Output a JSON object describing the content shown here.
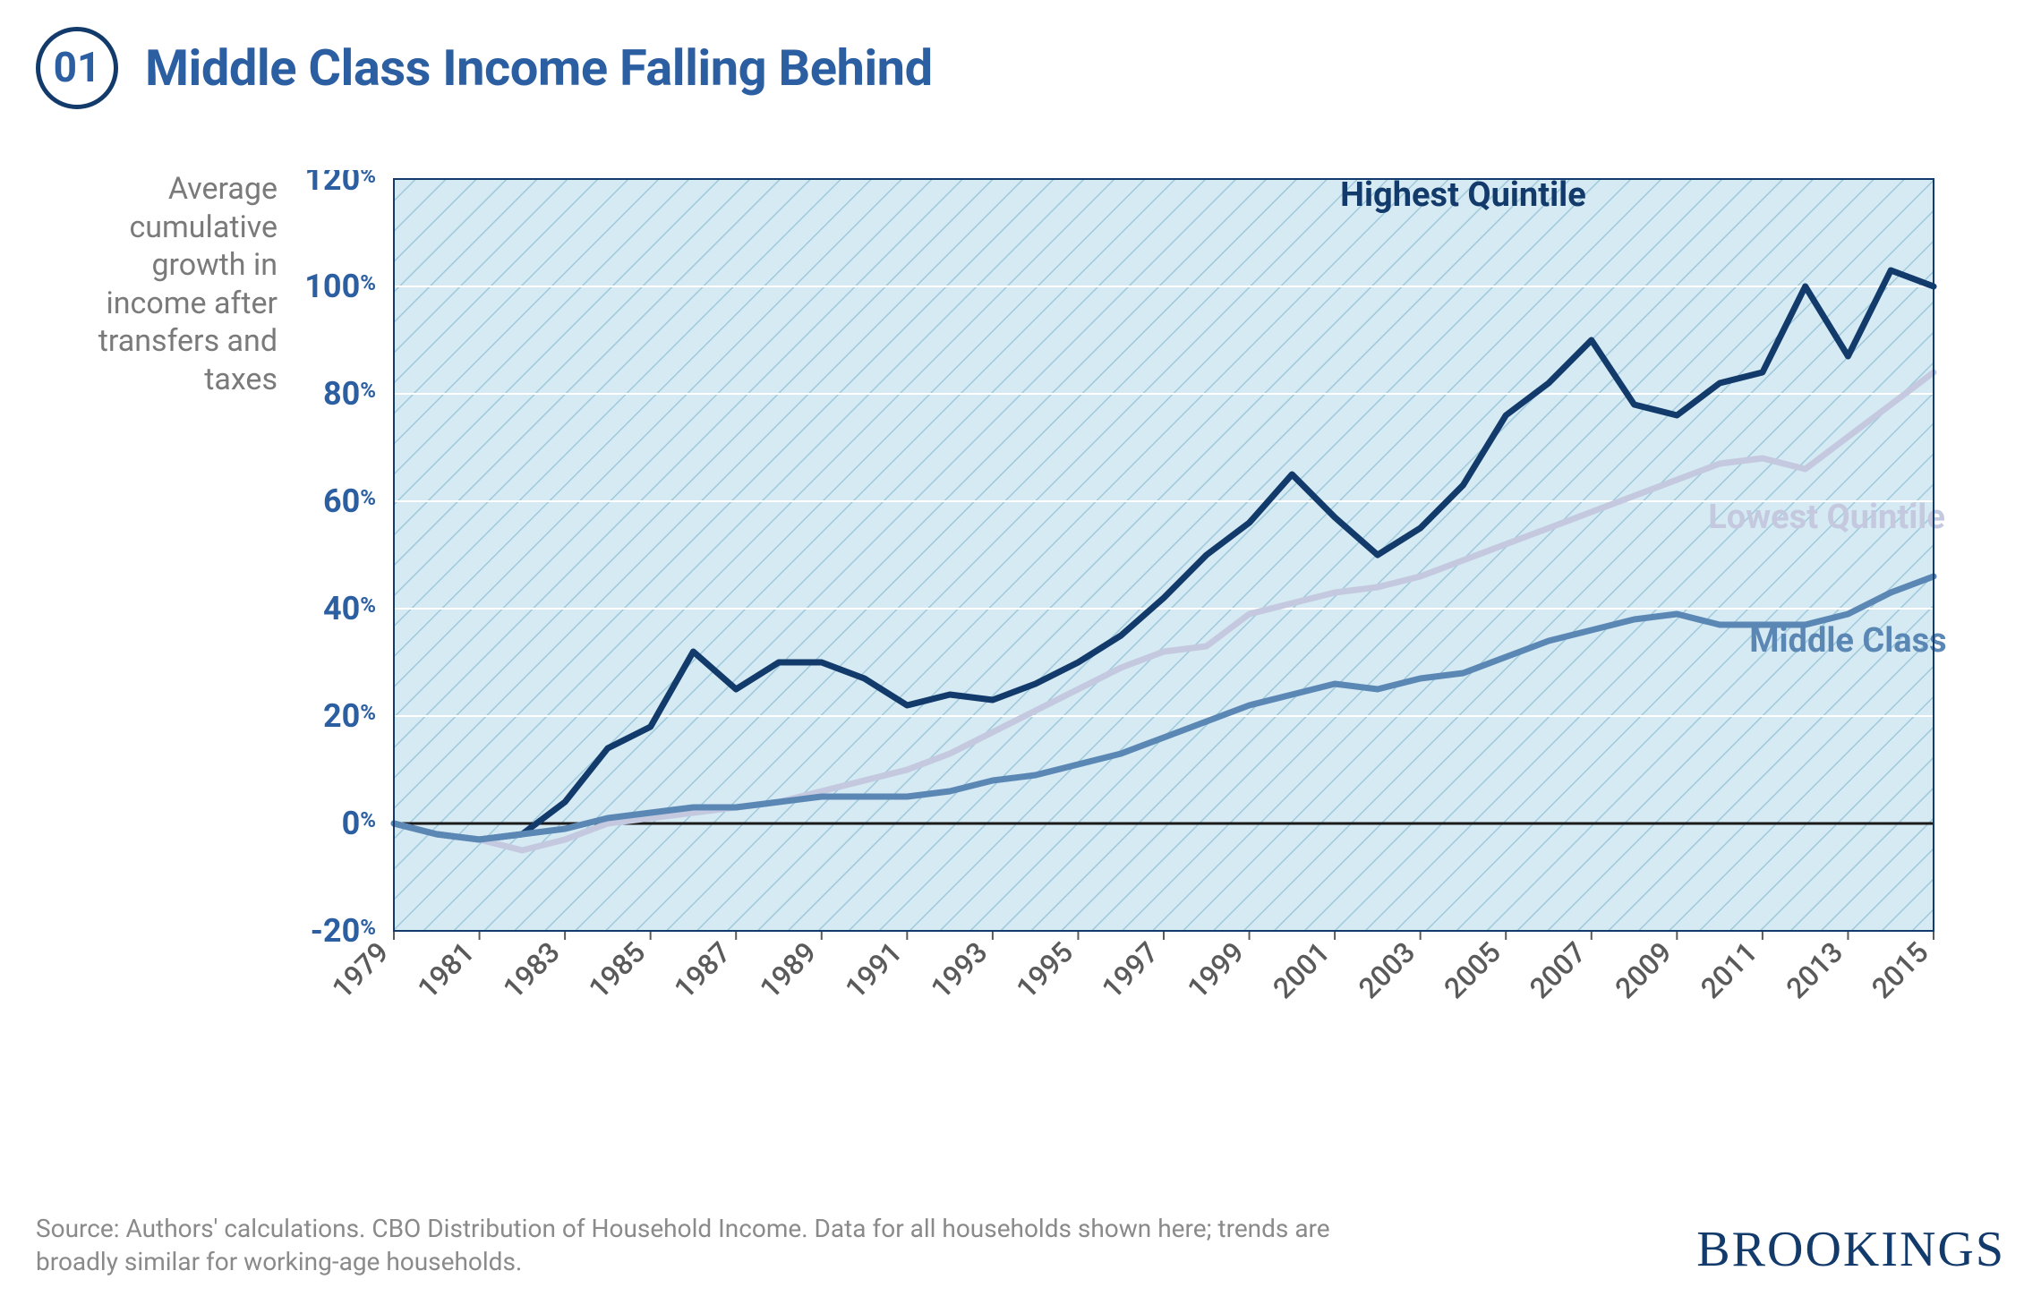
{
  "header": {
    "badge_number": "01",
    "title": "Middle Class Income Falling Behind"
  },
  "chart": {
    "type": "line",
    "y_axis_title": "Average cumulative growth in income after transfers and taxes",
    "background_color": "#d5eaf2",
    "hatch_color": "#9fc9dc",
    "plot_border_color": "#123a6b",
    "zero_line_color": "#1a1a1a",
    "grid_color": "#ffffff",
    "ylim": [
      -20,
      120
    ],
    "ytick_step": 20,
    "yticks": [
      -20,
      0,
      20,
      40,
      60,
      80,
      100,
      120
    ],
    "xlim": [
      1979,
      2015
    ],
    "xticks": [
      1979,
      1981,
      1983,
      1985,
      1987,
      1989,
      1991,
      1993,
      1995,
      1997,
      1999,
      2001,
      2003,
      2005,
      2007,
      2009,
      2011,
      2013,
      2015
    ],
    "tick_label_color": "#2c5fa1",
    "tick_fontsize": 36,
    "xtick_color": "#5a5a5a",
    "xtick_fontsize": 32,
    "line_width": 7,
    "years": [
      1979,
      1980,
      1981,
      1982,
      1983,
      1984,
      1985,
      1986,
      1987,
      1988,
      1989,
      1990,
      1991,
      1992,
      1993,
      1994,
      1995,
      1996,
      1997,
      1998,
      1999,
      2000,
      2001,
      2002,
      2003,
      2004,
      2005,
      2006,
      2007,
      2008,
      2009,
      2010,
      2011,
      2012,
      2013,
      2014,
      2015
    ],
    "series": [
      {
        "name": "Highest Quintile",
        "color": "#123a6b",
        "label_x": 2004,
        "label_y": 115,
        "values": [
          0,
          -2,
          -3,
          -2,
          4,
          14,
          18,
          32,
          25,
          30,
          30,
          27,
          22,
          24,
          23,
          26,
          30,
          35,
          42,
          50,
          56,
          65,
          57,
          50,
          55,
          63,
          76,
          82,
          90,
          78,
          76,
          82,
          84,
          100,
          87,
          103,
          100
        ]
      },
      {
        "name": "Lowest Quintile",
        "color": "#c5c9e0",
        "label_x": 2012.5,
        "label_y": 55,
        "values": [
          0,
          -2,
          -3,
          -5,
          -3,
          0,
          1,
          2,
          3,
          4,
          6,
          8,
          10,
          13,
          17,
          21,
          25,
          29,
          32,
          33,
          39,
          41,
          43,
          44,
          46,
          49,
          52,
          55,
          58,
          61,
          64,
          67,
          68,
          66,
          72,
          78,
          84
        ]
      },
      {
        "name": "Middle Class",
        "color": "#5b87b5",
        "label_x": 2013,
        "label_y": 32,
        "values": [
          0,
          -2,
          -3,
          -2,
          -1,
          1,
          2,
          3,
          3,
          4,
          5,
          5,
          5,
          6,
          8,
          9,
          11,
          13,
          16,
          19,
          22,
          24,
          26,
          25,
          27,
          28,
          31,
          34,
          36,
          38,
          39,
          37,
          37,
          37,
          39,
          43,
          46
        ]
      }
    ]
  },
  "footer": {
    "source": "Source: Authors' calculations. CBO Distribution of Household Income. Data for all households shown here; trends are broadly similar for working-age households.",
    "logo": "BROOKINGS"
  }
}
